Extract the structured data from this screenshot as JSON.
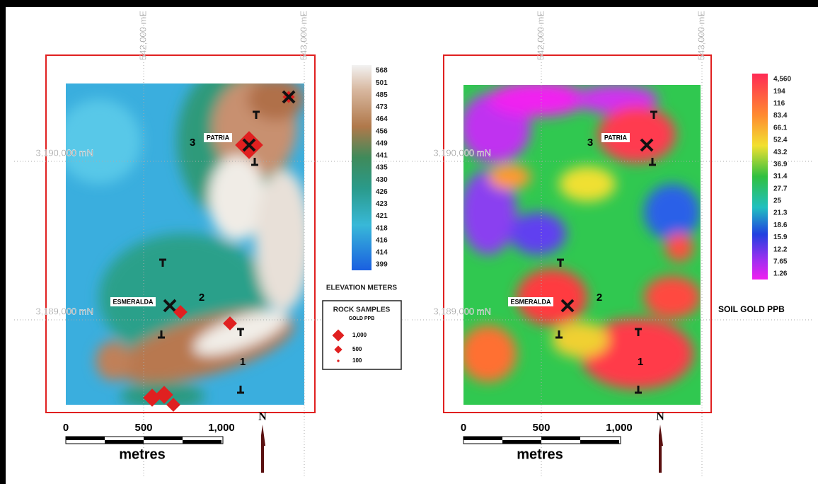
{
  "left_map": {
    "easting_labels": [
      "542,000 mE",
      "543,000 mE"
    ],
    "northing_labels": [
      "3,190,000 mN",
      "3,189,000 mN"
    ],
    "places": [
      "PATRIA",
      "ESMERALDA"
    ],
    "zones": [
      "3",
      "2",
      "1"
    ],
    "legend": {
      "title": "ELEVATION METERS",
      "labels": [
        "568",
        "501",
        "485",
        "473",
        "464",
        "456",
        "449",
        "441",
        "435",
        "430",
        "426",
        "423",
        "421",
        "418",
        "416",
        "414",
        "399"
      ]
    },
    "rock_samples": {
      "title": "ROCK SAMPLES",
      "subtitle": "GOLD PPB",
      "sizes": [
        "1,000",
        "500",
        "100"
      ]
    },
    "scale": {
      "ticks": [
        "0",
        "500",
        "1,000"
      ],
      "unit": "metres"
    },
    "north": "N"
  },
  "right_map": {
    "easting_labels": [
      "542,000 mE",
      "543,000 mE"
    ],
    "northing_labels": [
      "3,190,000 mN",
      "3,189,000 mN"
    ],
    "places": [
      "PATRIA",
      "ESMERALDA"
    ],
    "zones": [
      "3",
      "2",
      "1"
    ],
    "legend": {
      "title": "SOIL GOLD PPB",
      "labels": [
        "4,560",
        "194",
        "116",
        "83.4",
        "66.1",
        "52.4",
        "43.2",
        "36.9",
        "31.4",
        "27.7",
        "25",
        "21.3",
        "18.6",
        "15.9",
        "12.2",
        "7.65",
        "1.26"
      ]
    },
    "scale": {
      "ticks": [
        "0",
        "500",
        "1,000"
      ],
      "unit": "metres"
    },
    "north": "N"
  }
}
